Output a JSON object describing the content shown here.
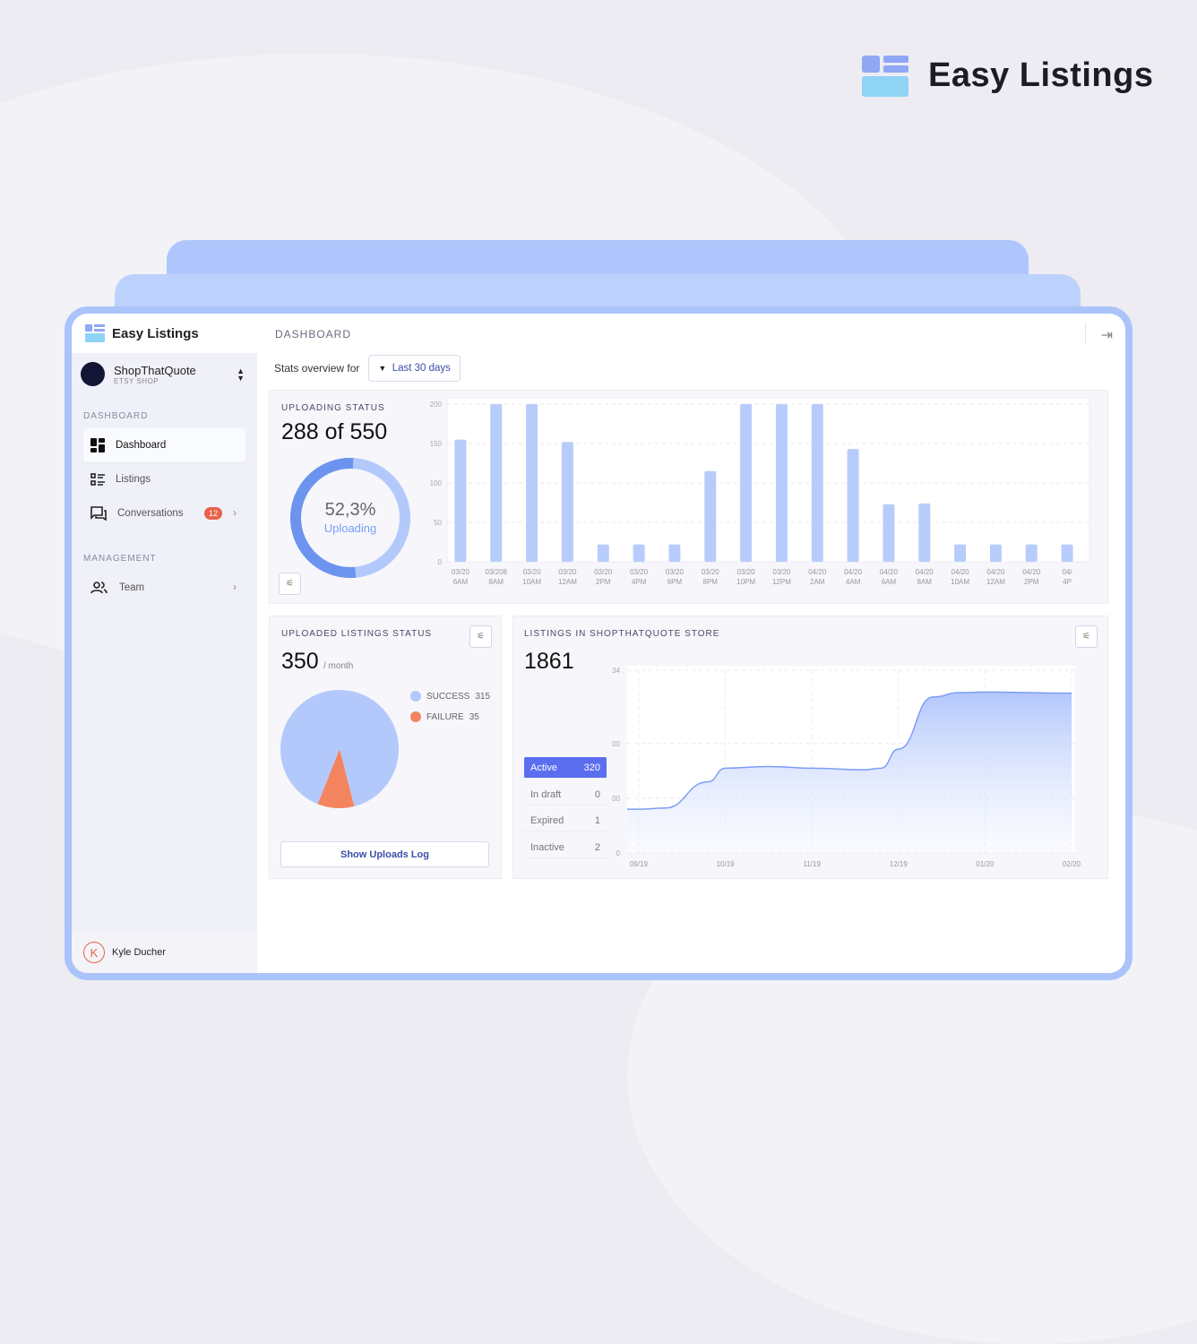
{
  "brand": {
    "title": "Easy Listings"
  },
  "sidebar": {
    "app_title": "Easy Listings",
    "shop_name": "ShopThatQuote",
    "shop_type": "ETSY SHOP",
    "sections": [
      {
        "label": "DASHBOARD"
      },
      {
        "label": "MANAGEMENT"
      }
    ],
    "items": [
      {
        "label": "Dashboard",
        "icon": "dashboard-icon"
      },
      {
        "label": "Listings",
        "icon": "list-icon"
      },
      {
        "label": "Conversations",
        "icon": "chat-icon",
        "badge": "12"
      },
      {
        "label": "Team",
        "icon": "team-icon"
      }
    ],
    "user": {
      "initial": "K",
      "name": "Kyle Ducher"
    }
  },
  "header": {
    "title": "DASHBOARD",
    "stats_label": "Stats overview for",
    "range": "Last 30 days"
  },
  "uploading": {
    "title": "UPLOADING STATUS",
    "count": "288 of 550",
    "percent_text": "52,3%",
    "percent": 52.3,
    "status": "Uploading"
  },
  "uploaded": {
    "title": "UPLOADED LISTINGS STATUS",
    "count": "350",
    "unit": "/ month",
    "legend": [
      {
        "label": "SUCCESS",
        "value": "315",
        "color": "#b3c9fb"
      },
      {
        "label": "FAILURE",
        "value": "35",
        "color": "#f4845f"
      }
    ],
    "button": "Show Uploads Log"
  },
  "store": {
    "title": "LISTINGS IN SHOPTHATQUOTE STORE",
    "count": "1861",
    "statuses": [
      {
        "label": "Active",
        "value": "320"
      },
      {
        "label": "In draft",
        "value": "0"
      },
      {
        "label": "Expired",
        "value": "1"
      },
      {
        "label": "Inactive",
        "value": "2"
      }
    ]
  },
  "chart_data": [
    {
      "type": "bar",
      "ylim": [
        0,
        200
      ],
      "yticks": [
        "200",
        "150",
        "100",
        "50",
        "0"
      ],
      "categories": [
        [
          "03/20",
          "6AM"
        ],
        [
          "03/208",
          "8AM"
        ],
        [
          "03/20",
          "10AM"
        ],
        [
          "03/20",
          "12AM"
        ],
        [
          "03/20",
          "2PM"
        ],
        [
          "03/20",
          "4PM"
        ],
        [
          "03/20",
          "6PM"
        ],
        [
          "03/20",
          "8PM"
        ],
        [
          "03/20",
          "10PM"
        ],
        [
          "03/20",
          "12PM"
        ],
        [
          "04/20",
          "2AM"
        ],
        [
          "04/20",
          "4AM"
        ],
        [
          "04/20",
          "6AM"
        ],
        [
          "04/20",
          "8AM"
        ],
        [
          "04/20",
          "10AM"
        ],
        [
          "04/20",
          "12AM"
        ],
        [
          "04/20",
          "2PM"
        ],
        [
          "04/",
          "4P"
        ]
      ],
      "values": [
        155,
        200,
        200,
        152,
        22,
        22,
        22,
        115,
        200,
        200,
        200,
        143,
        73,
        74,
        22,
        22,
        22,
        22
      ],
      "color": "#b8ccfc"
    },
    {
      "type": "area",
      "ylim": [
        0,
        334
      ],
      "yticks": [
        "334",
        "200",
        "100",
        "0"
      ],
      "xticks": [
        "09/19",
        "10/19",
        "11/19",
        "12/19",
        "01/20",
        "02/20"
      ],
      "x": [
        0,
        0.3,
        0.8,
        1.0,
        1.5,
        2.0,
        2.6,
        2.8,
        3.0,
        3.4,
        3.7,
        4.0,
        5.0
      ],
      "values": [
        80,
        82,
        130,
        155,
        158,
        155,
        152,
        155,
        190,
        285,
        293,
        294,
        292
      ],
      "color": "#7c9ef5"
    },
    {
      "type": "pie",
      "labels": [
        "SUCCESS",
        "FAILURE"
      ],
      "values": [
        315,
        35
      ]
    }
  ]
}
